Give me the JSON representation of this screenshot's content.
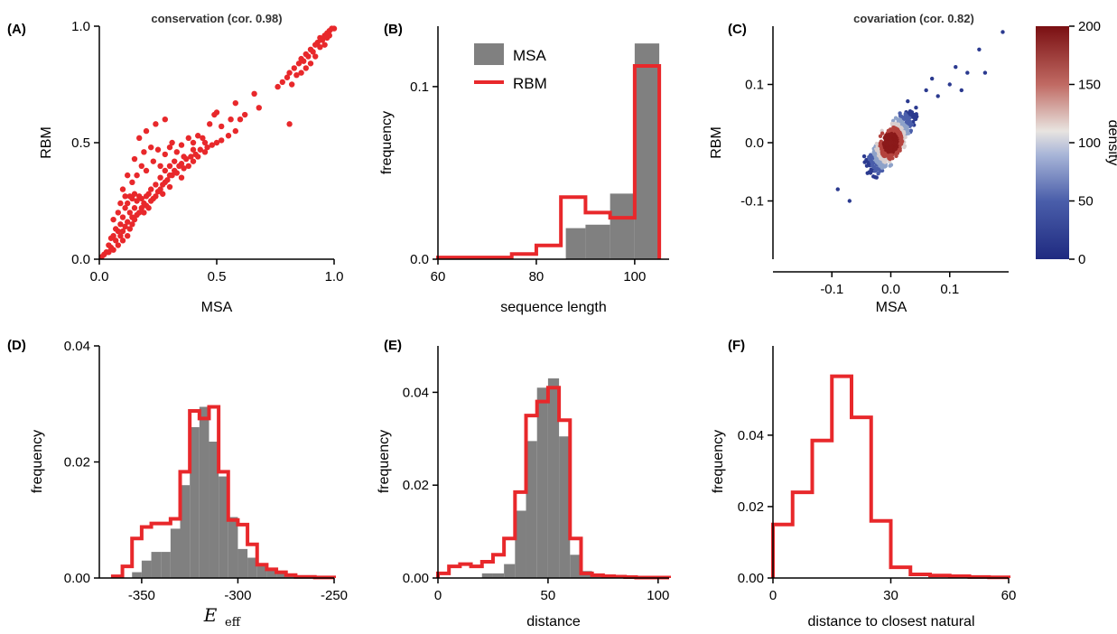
{
  "colors": {
    "rbm": "#e8282b",
    "msa": "#808080",
    "scatter": "#e8282b",
    "density_point": "#2b3a8f"
  },
  "chart_data": [
    {
      "id": "A",
      "type": "scatter",
      "panel_label": "(A)",
      "title": "conservation (cor. 0.98)",
      "xlabel": "MSA",
      "ylabel": "RBM",
      "xlim": [
        0,
        1
      ],
      "ylim": [
        0,
        1
      ],
      "xticks": [
        0,
        0.5,
        1
      ],
      "xtick_labels": [
        "0.0",
        "0.5",
        "1.0"
      ],
      "yticks": [
        0,
        0.5,
        1
      ],
      "ytick_labels": [
        "0.0",
        "0.5",
        "1.0"
      ],
      "points": [
        [
          0.01,
          0.01
        ],
        [
          0.02,
          0.02
        ],
        [
          0.03,
          0.03
        ],
        [
          0.04,
          0.03
        ],
        [
          0.04,
          0.06
        ],
        [
          0.05,
          0.05
        ],
        [
          0.05,
          0.09
        ],
        [
          0.06,
          0.04
        ],
        [
          0.06,
          0.1
        ],
        [
          0.07,
          0.08
        ],
        [
          0.07,
          0.13
        ],
        [
          0.08,
          0.06
        ],
        [
          0.08,
          0.12
        ],
        [
          0.09,
          0.1
        ],
        [
          0.09,
          0.15
        ],
        [
          0.1,
          0.08
        ],
        [
          0.1,
          0.12
        ],
        [
          0.1,
          0.18
        ],
        [
          0.11,
          0.14
        ],
        [
          0.11,
          0.22
        ],
        [
          0.12,
          0.1
        ],
        [
          0.12,
          0.16
        ],
        [
          0.12,
          0.24
        ],
        [
          0.13,
          0.13
        ],
        [
          0.13,
          0.2
        ],
        [
          0.13,
          0.27
        ],
        [
          0.14,
          0.15
        ],
        [
          0.14,
          0.18
        ],
        [
          0.14,
          0.26
        ],
        [
          0.15,
          0.17
        ],
        [
          0.15,
          0.22
        ],
        [
          0.15,
          0.28
        ],
        [
          0.16,
          0.19
        ],
        [
          0.16,
          0.25
        ],
        [
          0.17,
          0.2
        ],
        [
          0.17,
          0.27
        ],
        [
          0.18,
          0.22
        ],
        [
          0.18,
          0.26
        ],
        [
          0.19,
          0.2
        ],
        [
          0.19,
          0.24
        ],
        [
          0.2,
          0.23
        ],
        [
          0.2,
          0.27
        ],
        [
          0.21,
          0.22
        ],
        [
          0.21,
          0.28
        ],
        [
          0.22,
          0.25
        ],
        [
          0.22,
          0.3
        ],
        [
          0.23,
          0.26
        ],
        [
          0.24,
          0.27
        ],
        [
          0.24,
          0.32
        ],
        [
          0.25,
          0.29
        ],
        [
          0.26,
          0.3
        ],
        [
          0.26,
          0.35
        ],
        [
          0.27,
          0.32
        ],
        [
          0.28,
          0.33
        ],
        [
          0.28,
          0.38
        ],
        [
          0.29,
          0.34
        ],
        [
          0.3,
          0.36
        ],
        [
          0.3,
          0.4
        ],
        [
          0.31,
          0.36
        ],
        [
          0.32,
          0.38
        ],
        [
          0.33,
          0.37
        ],
        [
          0.34,
          0.4
        ],
        [
          0.35,
          0.41
        ],
        [
          0.36,
          0.39
        ],
        [
          0.37,
          0.43
        ],
        [
          0.38,
          0.4
        ],
        [
          0.39,
          0.44
        ],
        [
          0.4,
          0.42
        ],
        [
          0.41,
          0.45
        ],
        [
          0.42,
          0.44
        ],
        [
          0.43,
          0.47
        ],
        [
          0.45,
          0.46
        ],
        [
          0.46,
          0.48
        ],
        [
          0.48,
          0.49
        ],
        [
          0.5,
          0.5
        ],
        [
          0.52,
          0.51
        ],
        [
          0.55,
          0.53
        ],
        [
          0.58,
          0.55
        ],
        [
          0.18,
          0.4
        ],
        [
          0.2,
          0.38
        ],
        [
          0.19,
          0.46
        ],
        [
          0.23,
          0.42
        ],
        [
          0.22,
          0.48
        ],
        [
          0.25,
          0.47
        ],
        [
          0.26,
          0.4
        ],
        [
          0.28,
          0.45
        ],
        [
          0.3,
          0.48
        ],
        [
          0.31,
          0.5
        ],
        [
          0.33,
          0.46
        ],
        [
          0.35,
          0.49
        ],
        [
          0.38,
          0.52
        ],
        [
          0.4,
          0.5
        ],
        [
          0.42,
          0.53
        ],
        [
          0.44,
          0.52
        ],
        [
          0.47,
          0.58
        ],
        [
          0.49,
          0.62
        ],
        [
          0.5,
          0.63
        ],
        [
          0.52,
          0.57
        ],
        [
          0.56,
          0.6
        ],
        [
          0.58,
          0.67
        ],
        [
          0.6,
          0.6
        ],
        [
          0.62,
          0.62
        ],
        [
          0.66,
          0.71
        ],
        [
          0.68,
          0.65
        ],
        [
          0.15,
          0.43
        ],
        [
          0.17,
          0.52
        ],
        [
          0.2,
          0.55
        ],
        [
          0.24,
          0.58
        ],
        [
          0.28,
          0.6
        ],
        [
          0.12,
          0.36
        ],
        [
          0.1,
          0.3
        ],
        [
          0.14,
          0.33
        ],
        [
          0.16,
          0.36
        ],
        [
          0.08,
          0.2
        ],
        [
          0.06,
          0.17
        ],
        [
          0.11,
          0.27
        ],
        [
          0.09,
          0.24
        ],
        [
          0.32,
          0.42
        ],
        [
          0.36,
          0.44
        ],
        [
          0.4,
          0.47
        ],
        [
          0.45,
          0.5
        ],
        [
          0.3,
          0.31
        ],
        [
          0.27,
          0.28
        ],
        [
          0.35,
          0.35
        ],
        [
          0.78,
          0.76
        ],
        [
          0.8,
          0.78
        ],
        [
          0.81,
          0.8
        ],
        [
          0.82,
          0.75
        ],
        [
          0.83,
          0.82
        ],
        [
          0.84,
          0.79
        ],
        [
          0.85,
          0.84
        ],
        [
          0.86,
          0.8
        ],
        [
          0.86,
          0.86
        ],
        [
          0.87,
          0.85
        ],
        [
          0.88,
          0.82
        ],
        [
          0.88,
          0.88
        ],
        [
          0.89,
          0.87
        ],
        [
          0.9,
          0.84
        ],
        [
          0.9,
          0.9
        ],
        [
          0.91,
          0.89
        ],
        [
          0.92,
          0.92
        ],
        [
          0.92,
          0.87
        ],
        [
          0.93,
          0.93
        ],
        [
          0.94,
          0.91
        ],
        [
          0.94,
          0.95
        ],
        [
          0.95,
          0.94
        ],
        [
          0.96,
          0.96
        ],
        [
          0.96,
          0.92
        ],
        [
          0.97,
          0.97
        ],
        [
          0.97,
          0.95
        ],
        [
          0.98,
          0.98
        ],
        [
          0.98,
          0.96
        ],
        [
          0.99,
          0.99
        ],
        [
          1.0,
          0.99
        ],
        [
          0.81,
          0.58
        ],
        [
          0.76,
          0.74
        ]
      ]
    },
    {
      "id": "B",
      "type": "bar",
      "panel_label": "(B)",
      "xlabel": "sequence length",
      "ylabel": "frequency",
      "xlim": [
        60,
        107
      ],
      "ylim": [
        0,
        0.135
      ],
      "xticks": [
        60,
        80,
        100
      ],
      "yticks": [
        0,
        0.1
      ],
      "ytick_labels": [
        "0.0",
        "0.1"
      ],
      "legend": [
        "MSA",
        "RBM"
      ],
      "legend_position": "top-center",
      "series": [
        {
          "name": "MSA",
          "style": "filled",
          "edges": [
            86,
            90,
            95,
            100,
            105
          ],
          "values": [
            0.018,
            0.02,
            0.038,
            0.125
          ]
        },
        {
          "name": "RBM",
          "style": "step",
          "edges": [
            60,
            75,
            80,
            85,
            90,
            95,
            100,
            105
          ],
          "values": [
            0.001,
            0.003,
            0.008,
            0.036,
            0.027,
            0.024,
            0.112
          ]
        }
      ]
    },
    {
      "id": "C",
      "type": "scatter",
      "panel_label": "(C)",
      "title": "covariation (cor. 0.82)",
      "xlabel": "MSA",
      "ylabel": "RBM",
      "xlim": [
        -0.2,
        0.2
      ],
      "ylim": [
        -0.2,
        0.2
      ],
      "xticks": [
        -0.1,
        0,
        0.1
      ],
      "xtick_labels": [
        "-0.1",
        "0.0",
        "0.1"
      ],
      "yticks": [
        -0.1,
        0,
        0.1
      ],
      "ytick_labels": [
        "-0.1",
        "0.0",
        "0.1"
      ],
      "colorbar": {
        "label": "density",
        "ticks": [
          0,
          50,
          100,
          150,
          200
        ]
      }
    },
    {
      "id": "D",
      "type": "bar",
      "panel_label": "(D)",
      "xlabel": "E_eff",
      "ylabel": "frequency",
      "xlim": [
        -372,
        -250
      ],
      "ylim": [
        0,
        0.04
      ],
      "xticks": [
        -350,
        -300,
        -250
      ],
      "yticks": [
        0,
        0.02,
        0.04
      ],
      "ytick_labels": [
        "0.00",
        "0.02",
        "0.04"
      ],
      "series": [
        {
          "name": "MSA",
          "style": "filled",
          "edges": [
            -355,
            -350,
            -345,
            -340,
            -335,
            -330,
            -325,
            -320,
            -315,
            -310,
            -305,
            -300,
            -295,
            -290,
            -285,
            -280,
            -275,
            -270,
            -265,
            -260,
            -255,
            -250
          ],
          "values": [
            0.001,
            0.003,
            0.0045,
            0.0045,
            0.0085,
            0.016,
            0.026,
            0.0295,
            0.0235,
            0.0175,
            0.0105,
            0.005,
            0.0035,
            0.0025,
            0.0015,
            0.001,
            0.0005,
            0.0003,
            0.0002,
            0.0001,
            0.0001
          ]
        },
        {
          "name": "RBM",
          "style": "step",
          "edges": [
            -365,
            -360,
            -355,
            -350,
            -345,
            -340,
            -335,
            -330,
            -325,
            -320,
            -315,
            -310,
            -305,
            -300,
            -295,
            -290,
            -285,
            -280,
            -275,
            -270,
            -265,
            -260,
            -255,
            -250
          ],
          "values": [
            0.0003,
            0.002,
            0.0068,
            0.0088,
            0.0094,
            0.0094,
            0.0102,
            0.0183,
            0.0288,
            0.0275,
            0.0295,
            0.0183,
            0.01,
            0.0092,
            0.0058,
            0.0023,
            0.0015,
            0.001,
            0.0005,
            0.0002,
            0.0002,
            0.0001,
            0.0001
          ]
        }
      ]
    },
    {
      "id": "E",
      "type": "bar",
      "panel_label": "(E)",
      "xlabel": "distance",
      "ylabel": "frequency",
      "xlim": [
        0,
        105
      ],
      "ylim": [
        0,
        0.05
      ],
      "xticks": [
        0,
        50,
        100
      ],
      "yticks": [
        0,
        0.02,
        0.04
      ],
      "ytick_labels": [
        "0.00",
        "0.02",
        "0.04"
      ],
      "series": [
        {
          "name": "MSA",
          "style": "filled",
          "edges": [
            20,
            25,
            30,
            35,
            40,
            45,
            50,
            55,
            60,
            65,
            70,
            75,
            80,
            85,
            90,
            95,
            100,
            105
          ],
          "values": [
            0.001,
            0.001,
            0.003,
            0.0145,
            0.0295,
            0.041,
            0.043,
            0.0305,
            0.005,
            0.0015,
            0.0005,
            0.0003,
            0.0002,
            0.0001,
            0.0001,
            0.0001,
            0.0001
          ]
        },
        {
          "name": "RBM",
          "style": "step",
          "edges": [
            0,
            5,
            10,
            15,
            20,
            25,
            30,
            35,
            40,
            45,
            50,
            55,
            60,
            65,
            70,
            75,
            80,
            85,
            90,
            95,
            100,
            105
          ],
          "values": [
            0.001,
            0.0025,
            0.003,
            0.0025,
            0.0035,
            0.005,
            0.0085,
            0.0185,
            0.035,
            0.038,
            0.041,
            0.034,
            0.0085,
            0.001,
            0.0006,
            0.0004,
            0.0003,
            0.0002,
            0.0001,
            0.0001,
            0.0001
          ]
        }
      ]
    },
    {
      "id": "F",
      "type": "bar",
      "panel_label": "(F)",
      "xlabel": "distance to closest natural",
      "ylabel": "frequency",
      "xlim": [
        0,
        60
      ],
      "ylim": [
        0,
        0.065
      ],
      "xticks": [
        0,
        30,
        60
      ],
      "yticks": [
        0,
        0.02,
        0.04
      ],
      "ytick_labels": [
        "0.00",
        "0.02",
        "0.04"
      ],
      "series": [
        {
          "name": "RBM",
          "style": "step",
          "edges": [
            0,
            5,
            10,
            15,
            20,
            25,
            30,
            35,
            40,
            45,
            50,
            55,
            60
          ],
          "values": [
            0.015,
            0.024,
            0.0385,
            0.0565,
            0.045,
            0.016,
            0.003,
            0.001,
            0.0007,
            0.0005,
            0.0003,
            0.0002
          ]
        }
      ]
    }
  ]
}
